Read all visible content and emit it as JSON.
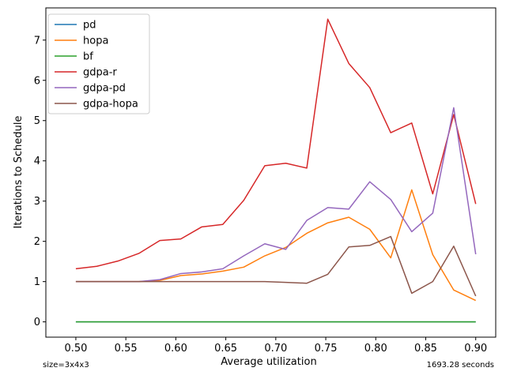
{
  "chart_data": {
    "type": "line",
    "xlabel": "Average utilization",
    "ylabel": "Iterations to Schedule",
    "xlim": [
      0.47,
      0.92
    ],
    "ylim": [
      -0.38,
      7.8
    ],
    "xticks": [
      0.5,
      0.55,
      0.6,
      0.65,
      0.7,
      0.75,
      0.8,
      0.85,
      0.9
    ],
    "xtick_labels": [
      "0.50",
      "0.55",
      "0.60",
      "0.65",
      "0.70",
      "0.75",
      "0.80",
      "0.85",
      "0.90"
    ],
    "yticks": [
      0,
      1,
      2,
      3,
      4,
      5,
      6,
      7
    ],
    "ytick_labels": [
      "0",
      "1",
      "2",
      "3",
      "4",
      "5",
      "6",
      "7"
    ],
    "grid": false,
    "legend_position": "top-left",
    "x": [
      0.5,
      0.521,
      0.542,
      0.563,
      0.584,
      0.605,
      0.626,
      0.647,
      0.668,
      0.689,
      0.71,
      0.731,
      0.752,
      0.773,
      0.794,
      0.815,
      0.836,
      0.857,
      0.878,
      0.9
    ],
    "series": [
      {
        "name": "pd",
        "color": "#1f77b4",
        "values": [
          0,
          0,
          0,
          0,
          0,
          0,
          0,
          0,
          0,
          0,
          0,
          0,
          0,
          0,
          0,
          0,
          0,
          0,
          0,
          0
        ]
      },
      {
        "name": "hopa",
        "color": "#ff7f0e",
        "values": [
          1.0,
          1.0,
          1.0,
          1.0,
          1.03,
          1.15,
          1.19,
          1.26,
          1.36,
          1.64,
          1.85,
          2.2,
          2.46,
          2.6,
          2.3,
          1.59,
          3.28,
          1.67,
          0.79,
          0.53
        ]
      },
      {
        "name": "bf",
        "color": "#2ca02c",
        "values": [
          0,
          0,
          0,
          0,
          0,
          0,
          0,
          0,
          0,
          0,
          0,
          0,
          0,
          0,
          0,
          0,
          0,
          0,
          0,
          0
        ]
      },
      {
        "name": "gdpa-r",
        "color": "#d62728",
        "values": [
          1.32,
          1.38,
          1.51,
          1.7,
          2.02,
          2.06,
          2.36,
          2.42,
          3.02,
          3.88,
          3.94,
          3.82,
          7.52,
          6.42,
          5.82,
          4.7,
          4.94,
          3.18,
          5.15,
          2.93
        ]
      },
      {
        "name": "gdpa-pd",
        "color": "#9467bd",
        "values": [
          1.0,
          1.0,
          1.0,
          1.0,
          1.05,
          1.2,
          1.24,
          1.32,
          1.64,
          1.94,
          1.8,
          2.52,
          2.84,
          2.8,
          3.48,
          3.04,
          2.24,
          2.7,
          5.32,
          1.68
        ]
      },
      {
        "name": "gdpa-hopa",
        "color": "#8c564b",
        "values": [
          1.0,
          1.0,
          1.0,
          1.0,
          1.0,
          1.0,
          1.0,
          1.0,
          1.0,
          1.0,
          0.98,
          0.96,
          1.18,
          1.86,
          1.9,
          2.12,
          0.71,
          1.0,
          1.88,
          0.64
        ]
      }
    ]
  },
  "annotations": {
    "bottom_left": "size=3x4x3",
    "bottom_right": "1693.28 seconds"
  }
}
